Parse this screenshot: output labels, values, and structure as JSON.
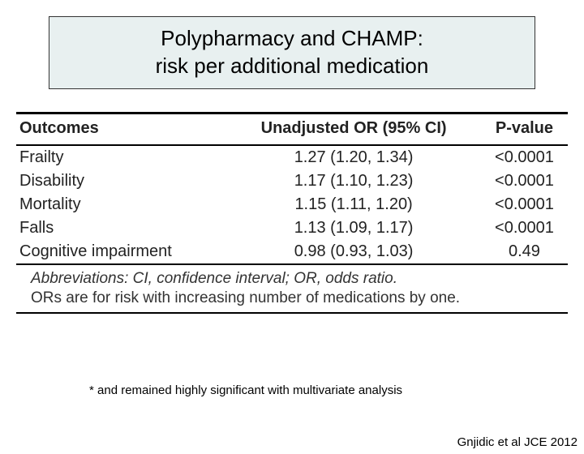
{
  "title": {
    "line1": "Polypharmacy and CHAMP:",
    "line2": "risk per additional medication",
    "bg_color": "#e8f0f0",
    "border_color": "#333333",
    "fontsize": 26
  },
  "table": {
    "columns": [
      {
        "label": "Outcomes",
        "align": "left"
      },
      {
        "label": "Unadjusted OR (95% CI)",
        "align": "center"
      },
      {
        "label": "P-value",
        "align": "center"
      }
    ],
    "rows": [
      {
        "outcome": "Frailty",
        "or": "1.27 (1.20, 1.34)",
        "p": "<0.0001"
      },
      {
        "outcome": "Disability",
        "or": "1.17 (1.10, 1.23)",
        "p": "<0.0001"
      },
      {
        "outcome": "Mortality",
        "or": "1.15 (1.11, 1.20)",
        "p": "<0.0001"
      },
      {
        "outcome": "Falls",
        "or": "1.13 (1.09, 1.17)",
        "p": "<0.0001"
      },
      {
        "outcome": "Cognitive impairment",
        "or": "0.98 (0.93, 1.03)",
        "p": "0.49"
      }
    ],
    "abbreviations": "Abbreviations: CI, confidence interval; OR, odds ratio.",
    "note": "ORs are for risk with increasing number of medications by one.",
    "header_fontsize": 20,
    "cell_fontsize": 20,
    "rule_color": "#000000"
  },
  "footnote": "* and remained highly significant with multivariate analysis",
  "citation": "Gnjidic et al JCE 2012"
}
